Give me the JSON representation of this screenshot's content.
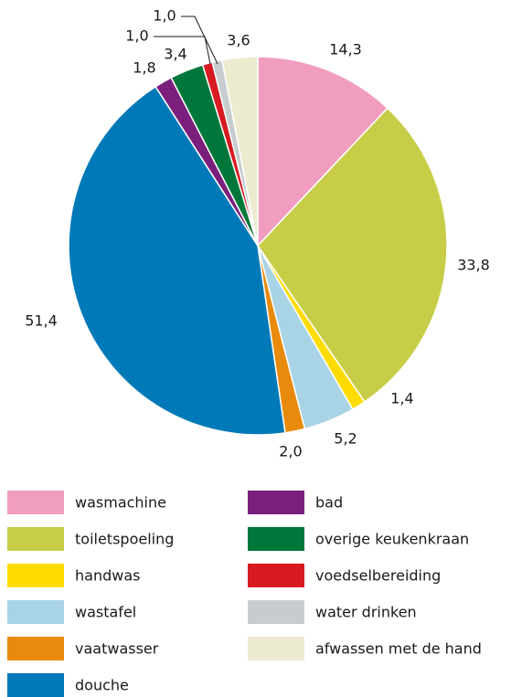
{
  "chart_data": {
    "type": "pie",
    "categories": [
      "wasmachine",
      "toiletspoeling",
      "handwas",
      "wastafel",
      "vaatwasser",
      "douche",
      "bad",
      "overige keukenkraan",
      "voedselbereiding",
      "water drinken",
      "afwassen met de hand"
    ],
    "values": [
      14.3,
      33.8,
      1.4,
      5.2,
      2.0,
      51.4,
      1.8,
      3.4,
      1.0,
      1.0,
      3.6
    ],
    "value_labels": [
      "14,3",
      "33,8",
      "1,4",
      "5,2",
      "2,0",
      "51,4",
      "1,8",
      "3,4",
      "1,0",
      "1,0",
      "3,6"
    ],
    "colors": [
      "#f09dc0",
      "#c8cd48",
      "#ffdc00",
      "#a9d4e6",
      "#e88a0b",
      "#0079b8",
      "#7b1f7d",
      "#00773a",
      "#d81a21",
      "#c7ccce",
      "#eceacf"
    ]
  }
}
